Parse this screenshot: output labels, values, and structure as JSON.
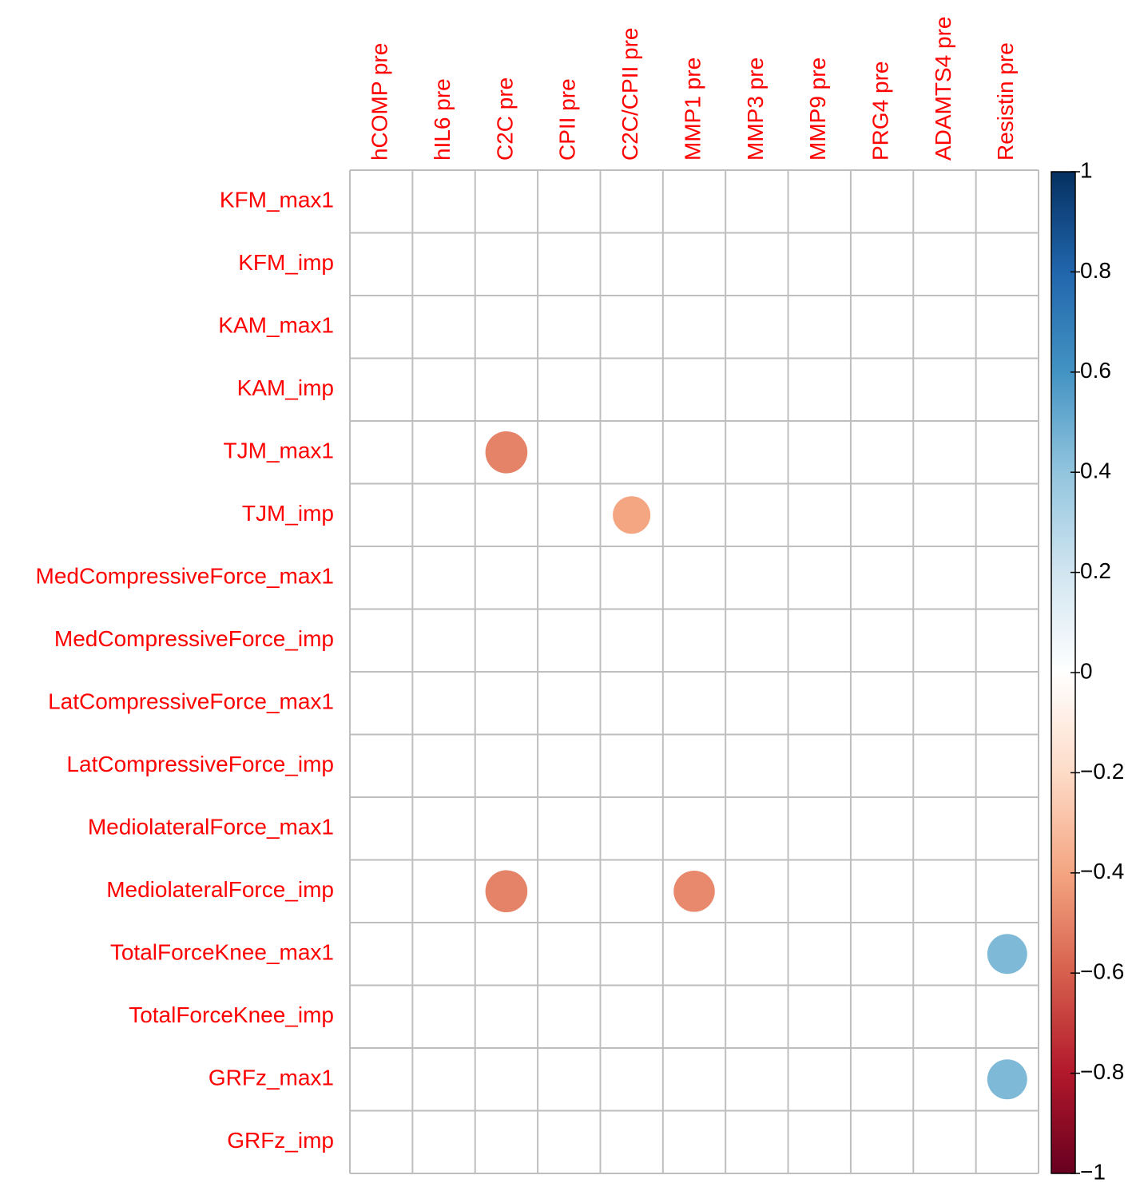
{
  "chart_data": {
    "type": "corrplot",
    "rows": [
      "KFM_max1",
      "KFM_imp",
      "KAM_max1",
      "KAM_imp",
      "TJM_max1",
      "TJM_imp",
      "MedCompressiveForce_max1",
      "MedCompressiveForce_imp",
      "LatCompressiveForce_max1",
      "LatCompressiveForce_imp",
      "MediolateralForce_max1",
      "MediolateralForce_imp",
      "TotalForceKnee_max1",
      "TotalForceKnee_imp",
      "GRFz_max1",
      "GRFz_imp"
    ],
    "columns": [
      "hCOMP pre",
      "hIL6 pre",
      "C2C pre",
      "CPII pre",
      "C2C/CPII pre",
      "MMP1 pre",
      "MMP3 pre",
      "MMP9 pre",
      "PRG4 pre",
      "ADAMTS4 pre",
      "Resistin pre"
    ],
    "values": [
      [
        null,
        null,
        null,
        null,
        null,
        null,
        null,
        null,
        null,
        null,
        null
      ],
      [
        null,
        null,
        null,
        null,
        null,
        null,
        null,
        null,
        null,
        null,
        null
      ],
      [
        null,
        null,
        null,
        null,
        null,
        null,
        null,
        null,
        null,
        null,
        null
      ],
      [
        null,
        null,
        null,
        null,
        null,
        null,
        null,
        null,
        null,
        null,
        null
      ],
      [
        null,
        null,
        -0.5,
        null,
        null,
        null,
        null,
        null,
        null,
        null,
        null
      ],
      [
        null,
        null,
        null,
        null,
        -0.4,
        null,
        null,
        null,
        null,
        null,
        null
      ],
      [
        null,
        null,
        null,
        null,
        null,
        null,
        null,
        null,
        null,
        null,
        null
      ],
      [
        null,
        null,
        null,
        null,
        null,
        null,
        null,
        null,
        null,
        null,
        null
      ],
      [
        null,
        null,
        null,
        null,
        null,
        null,
        null,
        null,
        null,
        null,
        null
      ],
      [
        null,
        null,
        null,
        null,
        null,
        null,
        null,
        null,
        null,
        null,
        null
      ],
      [
        null,
        null,
        null,
        null,
        null,
        null,
        null,
        null,
        null,
        null,
        null
      ],
      [
        null,
        null,
        -0.5,
        null,
        null,
        -0.48,
        null,
        null,
        null,
        null,
        null
      ],
      [
        null,
        null,
        null,
        null,
        null,
        null,
        null,
        null,
        null,
        null,
        0.45
      ],
      [
        null,
        null,
        null,
        null,
        null,
        null,
        null,
        null,
        null,
        null,
        null
      ],
      [
        null,
        null,
        null,
        null,
        null,
        null,
        null,
        null,
        null,
        null,
        0.45
      ],
      [
        null,
        null,
        null,
        null,
        null,
        null,
        null,
        null,
        null,
        null,
        null
      ]
    ],
    "colorscale": [
      "#67001F",
      "#B2182B",
      "#D6604D",
      "#F4A582",
      "#FDDBC7",
      "#FFFFFF",
      "#D1E5F0",
      "#92C5DE",
      "#4393C3",
      "#2166AC",
      "#053061"
    ],
    "ylim": [
      -1,
      1
    ],
    "yticks": [
      {
        "value": -1,
        "label": "−1"
      },
      {
        "value": -0.8,
        "label": "−0.8"
      },
      {
        "value": -0.6,
        "label": "−0.6"
      },
      {
        "value": -0.4,
        "label": "−0.4"
      },
      {
        "value": -0.2,
        "label": "−0.2"
      },
      0,
      0.2,
      0.4,
      0.6,
      0.8,
      1
    ]
  }
}
